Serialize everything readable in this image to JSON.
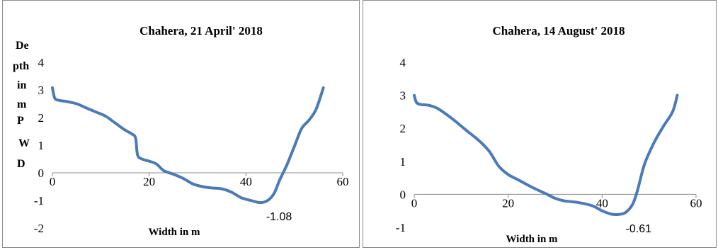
{
  "chart_data": [
    {
      "type": "line",
      "title": "Chahera, 21 April' 2018",
      "xlabel": "Width in m",
      "ylabel_lines": [
        "De",
        "pth",
        "in",
        "m",
        "P",
        "W",
        "D"
      ],
      "xlim": [
        0,
        60
      ],
      "ylim": [
        -2,
        4
      ],
      "xticks": [
        "0",
        "20",
        "40",
        "60"
      ],
      "yticks": [
        "-2",
        "-1",
        "0",
        "1",
        "2",
        "3",
        "4"
      ],
      "grid": false,
      "line_color": "#4a7ab8",
      "series": [
        {
          "x": [
            0,
            0.5,
            1.5,
            3,
            5,
            7,
            9,
            11,
            13,
            15,
            16.5,
            17.2,
            17.6,
            18.5,
            20,
            21.5,
            23,
            25,
            27,
            29,
            31,
            33,
            35,
            37,
            39,
            41,
            43,
            44.5,
            45.8,
            47,
            48.5,
            50,
            51.5,
            53,
            54.5,
            56
          ],
          "y": [
            3.08,
            2.7,
            2.62,
            2.58,
            2.5,
            2.35,
            2.2,
            2.05,
            1.8,
            1.55,
            1.4,
            1.25,
            0.65,
            0.5,
            0.42,
            0.32,
            0.08,
            -0.05,
            -0.2,
            -0.4,
            -0.5,
            -0.55,
            -0.58,
            -0.7,
            -0.9,
            -1.0,
            -1.08,
            -1.0,
            -0.75,
            -0.25,
            0.3,
            0.95,
            1.6,
            1.9,
            2.3,
            3.08
          ]
        }
      ],
      "data_labels": [
        {
          "text": "-1.08",
          "x": 43,
          "y": -1.08
        }
      ]
    },
    {
      "type": "line",
      "title": "Chahera, 14 August' 2018",
      "xlabel": "Width in m",
      "xlim": [
        0,
        60
      ],
      "ylim": [
        -1,
        4
      ],
      "xticks": [
        "0",
        "20",
        "40",
        "60"
      ],
      "yticks": [
        "-1",
        "0",
        "1",
        "2",
        "3",
        "4"
      ],
      "grid": false,
      "line_color": "#4a7ab8",
      "series": [
        {
          "x": [
            0,
            0.5,
            1.5,
            3,
            5,
            8,
            11,
            14,
            16,
            18,
            20,
            22,
            25,
            28,
            30,
            32,
            35,
            38,
            40,
            42,
            43.5,
            45,
            46.5,
            47.5,
            49,
            51,
            53,
            55,
            56
          ],
          "y": [
            3.0,
            2.78,
            2.72,
            2.7,
            2.6,
            2.3,
            1.95,
            1.6,
            1.3,
            0.85,
            0.6,
            0.45,
            0.22,
            0.02,
            -0.12,
            -0.2,
            -0.25,
            -0.35,
            -0.5,
            -0.6,
            -0.61,
            -0.55,
            -0.3,
            0.1,
            0.9,
            1.55,
            2.05,
            2.5,
            3.0
          ]
        }
      ],
      "data_labels": [
        {
          "text": "-0.61",
          "x": 43.5,
          "y": -0.61
        }
      ]
    }
  ]
}
